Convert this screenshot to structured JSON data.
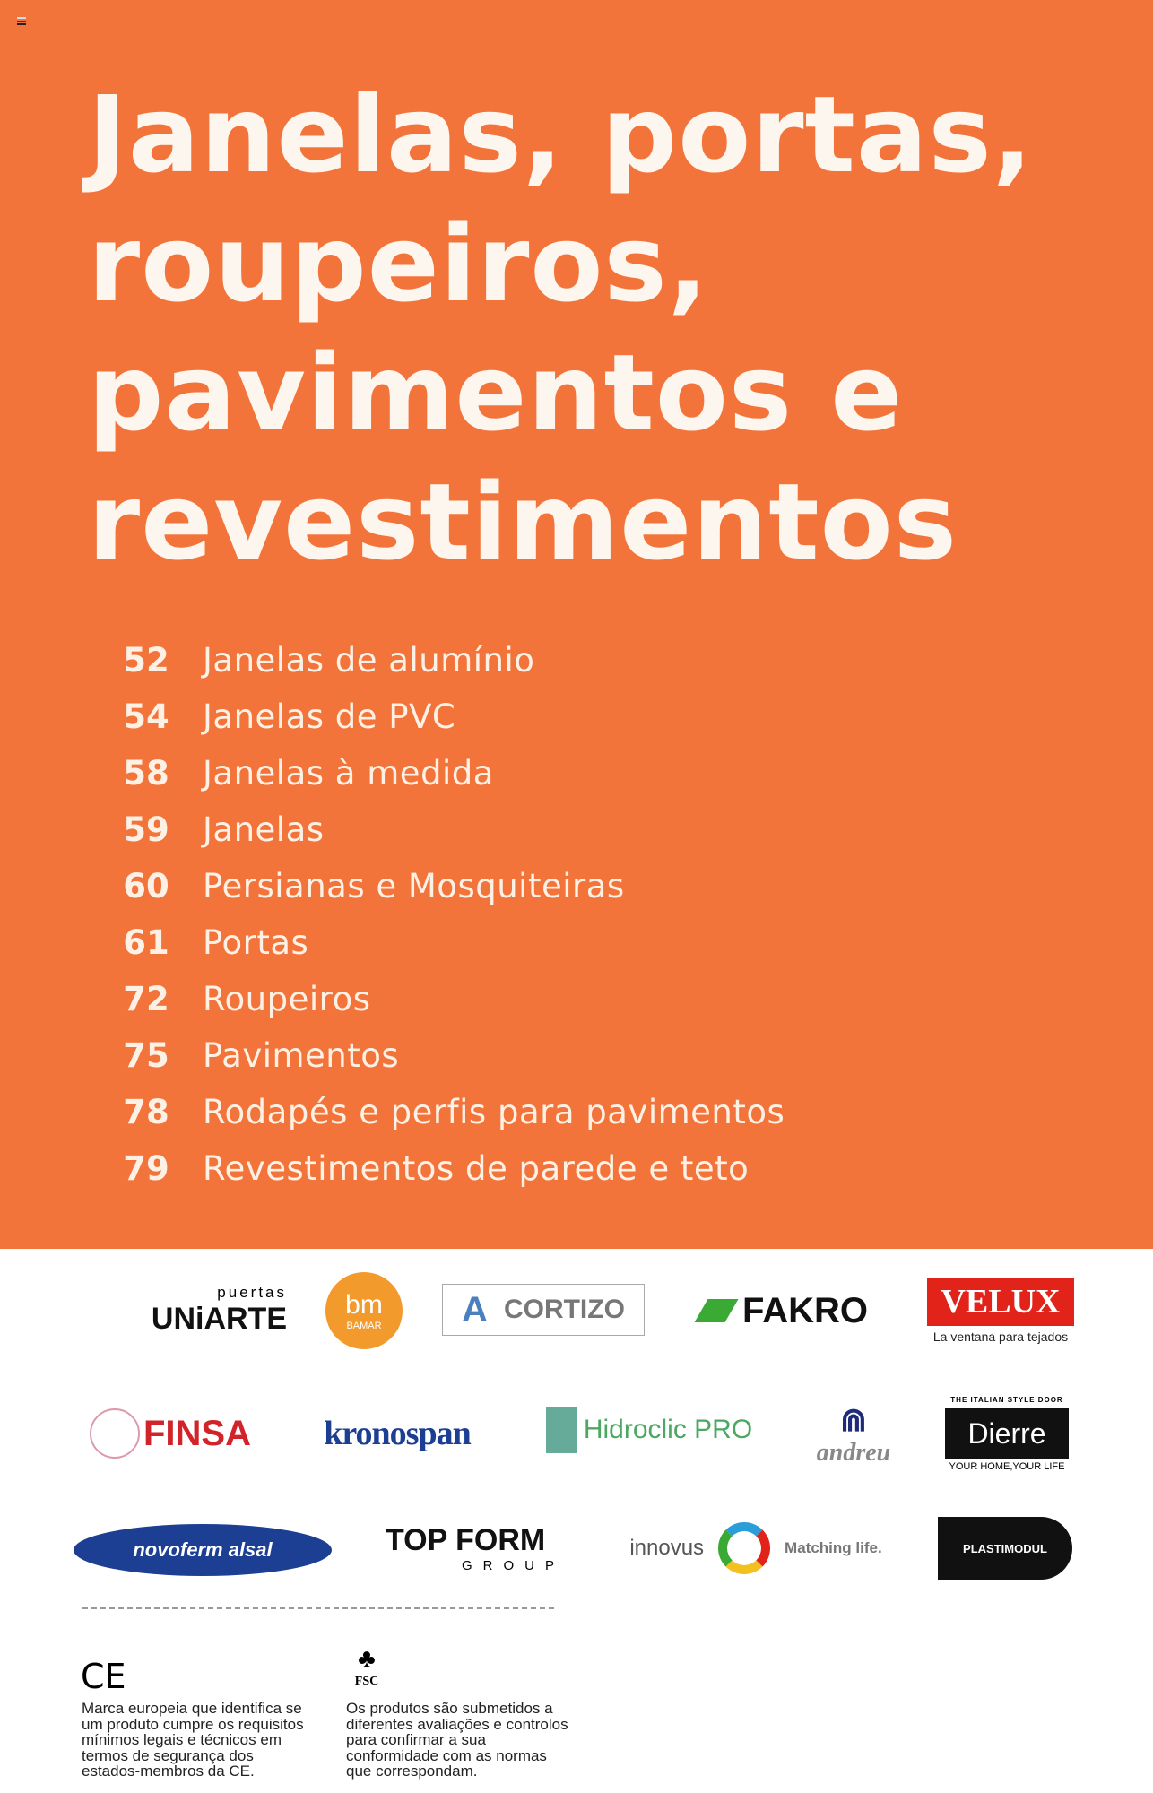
{
  "title": "Janelas, portas, roupeiros, pavimentos e revestimentos",
  "title_lines": [
    "Janelas, portas,",
    "roupeiros,",
    "pavimentos e",
    "revestimentos"
  ],
  "toc": [
    {
      "page": "52",
      "label": "Janelas de alumínio"
    },
    {
      "page": "54",
      "label": "Janelas de PVC"
    },
    {
      "page": "58",
      "label": "Janelas à medida"
    },
    {
      "page": "59",
      "label": "Janelas"
    },
    {
      "page": "60",
      "label": "Persianas e Mosquiteiras"
    },
    {
      "page": "61",
      "label": "Portas"
    },
    {
      "page": "72",
      "label": "Roupeiros"
    },
    {
      "page": "75",
      "label": "Pavimentos"
    },
    {
      "page": "78",
      "label": "Rodapés e perfis para pavimentos"
    },
    {
      "page": "79",
      "label": "Revestimentos de parede e teto"
    }
  ],
  "brands": {
    "uniarte": {
      "small": "puertas",
      "name": "UNiARTE"
    },
    "bamar": {
      "mark": "bm",
      "name": "BAMAR"
    },
    "cortizo": "CORTIZO",
    "fakro": "FAKRO",
    "velux": {
      "name": "VELUX",
      "tagline": "La ventana para tejados"
    },
    "finsa": "FINSA",
    "kronospan": "kronospan",
    "hidroclic": {
      "name": "Hidroclic PRO"
    },
    "andreu": "andreu",
    "dierre": {
      "top": "THE ITALIAN STYLE DOOR",
      "name": "Dierre",
      "tagline": "YOUR HOME,YOUR LIFE"
    },
    "novoferm": "novoferm alsal",
    "topform": {
      "name": "TOP FORM",
      "sub": "GROUP"
    },
    "innovus": {
      "name": "innovus",
      "tagline": "Matching life."
    },
    "plastimodul": "PLASTIMODUL"
  },
  "notes": {
    "ce": {
      "mark": "CE",
      "text": "Marca europeia que identifica se um produto cumpre os requisitos mínimos legais e técnicos em termos de segurança dos estados-membros da CE."
    },
    "fsc": {
      "mark": "FSC",
      "text": "Os produtos são submetidos a diferentes avaliações e controlos para confirmar a sua conformidade com as normas que correspondam."
    }
  },
  "colors": {
    "orange": "#f3743a",
    "velux_red": "#e2231a",
    "finsa_red": "#d2232a",
    "kronospan_blue": "#1c3f94",
    "fakro_green": "#3aaa35"
  }
}
